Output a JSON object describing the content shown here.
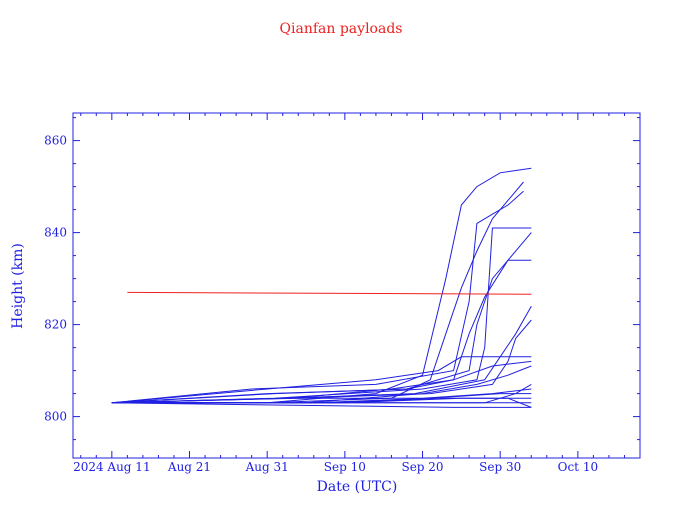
{
  "chart_data": {
    "type": "line",
    "title": "Qianfan payloads",
    "xlabel": "Date (UTC)",
    "ylabel": "Height (km)",
    "x_tick_labels": [
      "2024 Aug 11",
      "Aug 21",
      "Aug 31",
      "Sep 10",
      "Sep 20",
      "Sep 30",
      "Oct 10"
    ],
    "x_ticks": [
      "2024-08-11",
      "2024-08-21",
      "2024-08-31",
      "2024-09-10",
      "2024-09-20",
      "2024-09-30",
      "2024-10-10"
    ],
    "y_ticks": [
      800,
      820,
      840,
      860
    ],
    "xlim": [
      "2024-08-06",
      "2024-10-18"
    ],
    "ylim": [
      791,
      866
    ],
    "grid": false,
    "colors": {
      "payloads": "#2020e0",
      "reference": "#ee2020",
      "axes": "#2020e0",
      "title": "#ee2020"
    },
    "reference_line": {
      "x": [
        "2024-08-13",
        "2024-10-04"
      ],
      "values": [
        827.0,
        826.6
      ]
    },
    "series": [
      {
        "x": [
          "2024-08-11",
          "2024-08-31",
          "2024-09-14",
          "2024-09-20",
          "2024-09-23",
          "2024-09-25",
          "2024-09-27",
          "2024-09-30",
          "2024-10-04"
        ],
        "values": [
          803.0,
          803.0,
          805.0,
          809.0,
          830.0,
          846.0,
          850.0,
          853.0,
          854.0
        ]
      },
      {
        "x": [
          "2024-08-11",
          "2024-08-31",
          "2024-09-16",
          "2024-09-21",
          "2024-09-23",
          "2024-09-25",
          "2024-09-27",
          "2024-09-29",
          "2024-10-03"
        ],
        "values": [
          803.0,
          803.0,
          804.0,
          808.0,
          818.0,
          828.0,
          836.0,
          843.0,
          851.0
        ]
      },
      {
        "x": [
          "2024-08-11",
          "2024-08-29",
          "2024-09-14",
          "2024-09-24",
          "2024-09-26",
          "2024-09-27",
          "2024-09-29",
          "2024-10-01",
          "2024-10-03"
        ],
        "values": [
          803.0,
          806.0,
          807.0,
          810.0,
          825.0,
          842.0,
          844.0,
          846.0,
          849.0
        ]
      },
      {
        "x": [
          "2024-08-11",
          "2024-08-31",
          "2024-09-18",
          "2024-09-24",
          "2024-09-26",
          "2024-09-28",
          "2024-10-01",
          "2024-10-04"
        ],
        "values": [
          803.0,
          805.0,
          806.0,
          808.0,
          818.0,
          826.0,
          834.0,
          840.0
        ]
      },
      {
        "x": [
          "2024-08-11",
          "2024-09-01",
          "2024-09-18",
          "2024-09-26",
          "2024-09-27",
          "2024-09-29",
          "2024-10-01",
          "2024-10-04"
        ],
        "values": [
          803.0,
          805.0,
          806.0,
          810.0,
          820.0,
          830.0,
          834.0,
          834.0
        ]
      },
      {
        "x": [
          "2024-08-11",
          "2024-09-01",
          "2024-09-20",
          "2024-09-27",
          "2024-09-28",
          "2024-09-29",
          "2024-10-01",
          "2024-10-04"
        ],
        "values": [
          803.0,
          804.0,
          806.0,
          808.0,
          815.0,
          841.0,
          841.0,
          841.0
        ]
      },
      {
        "x": [
          "2024-08-11",
          "2024-09-02",
          "2024-09-19",
          "2024-09-28",
          "2024-09-30",
          "2024-10-02",
          "2024-10-04"
        ],
        "values": [
          803.0,
          804.0,
          805.0,
          808.0,
          813.0,
          818.0,
          824.0
        ]
      },
      {
        "x": [
          "2024-08-11",
          "2024-09-04",
          "2024-09-21",
          "2024-09-29",
          "2024-10-01",
          "2024-10-02",
          "2024-10-04"
        ],
        "values": [
          803.0,
          804.0,
          805.0,
          807.0,
          812.0,
          817.0,
          821.0
        ]
      },
      {
        "x": [
          "2024-08-11",
          "2024-08-31",
          "2024-09-14",
          "2024-09-22",
          "2024-09-25",
          "2024-09-29",
          "2024-10-04"
        ],
        "values": [
          803.0,
          806.0,
          808.0,
          810.0,
          813.0,
          813.0,
          813.0
        ]
      },
      {
        "x": [
          "2024-08-11",
          "2024-09-03",
          "2024-09-16",
          "2024-09-24",
          "2024-09-29",
          "2024-10-04"
        ],
        "values": [
          803.0,
          804.0,
          806.0,
          808.0,
          811.0,
          812.0
        ]
      },
      {
        "x": [
          "2024-08-11",
          "2024-09-05",
          "2024-09-20",
          "2024-09-27",
          "2024-10-01",
          "2024-10-04"
        ],
        "values": [
          803.0,
          803.0,
          805.0,
          807.0,
          809.0,
          811.0
        ]
      },
      {
        "x": [
          "2024-08-11",
          "2024-09-02",
          "2024-09-20",
          "2024-09-29",
          "2024-10-04"
        ],
        "values": [
          803.0,
          804.0,
          804.0,
          805.0,
          806.0
        ]
      },
      {
        "x": [
          "2024-08-11",
          "2024-09-06",
          "2024-09-21",
          "2024-09-30",
          "2024-10-04"
        ],
        "values": [
          803.0,
          803.0,
          804.0,
          805.0,
          805.0
        ]
      },
      {
        "x": [
          "2024-08-11",
          "2024-09-09",
          "2024-09-22",
          "2024-10-01",
          "2024-10-04"
        ],
        "values": [
          803.0,
          803.0,
          804.0,
          804.0,
          804.0
        ]
      },
      {
        "x": [
          "2024-08-11",
          "2024-09-10",
          "2024-09-25",
          "2024-10-01",
          "2024-10-04"
        ],
        "values": [
          803.0,
          803.0,
          804.0,
          804.0,
          802.0
        ]
      },
      {
        "x": [
          "2024-08-11",
          "2024-09-21",
          "2024-09-29",
          "2024-10-02",
          "2024-10-04"
        ],
        "values": [
          803.0,
          803.0,
          803.0,
          803.0,
          803.0
        ]
      },
      {
        "x": [
          "2024-08-11",
          "2024-09-18",
          "2024-09-28",
          "2024-10-02",
          "2024-10-04"
        ],
        "values": [
          803.0,
          803.0,
          803.0,
          805.0,
          807.0
        ]
      },
      {
        "x": [
          "2024-08-11",
          "2024-09-24",
          "2024-09-30",
          "2024-10-03",
          "2024-10-04"
        ],
        "values": [
          803.0,
          802.0,
          802.0,
          802.0,
          802.0
        ]
      }
    ]
  }
}
